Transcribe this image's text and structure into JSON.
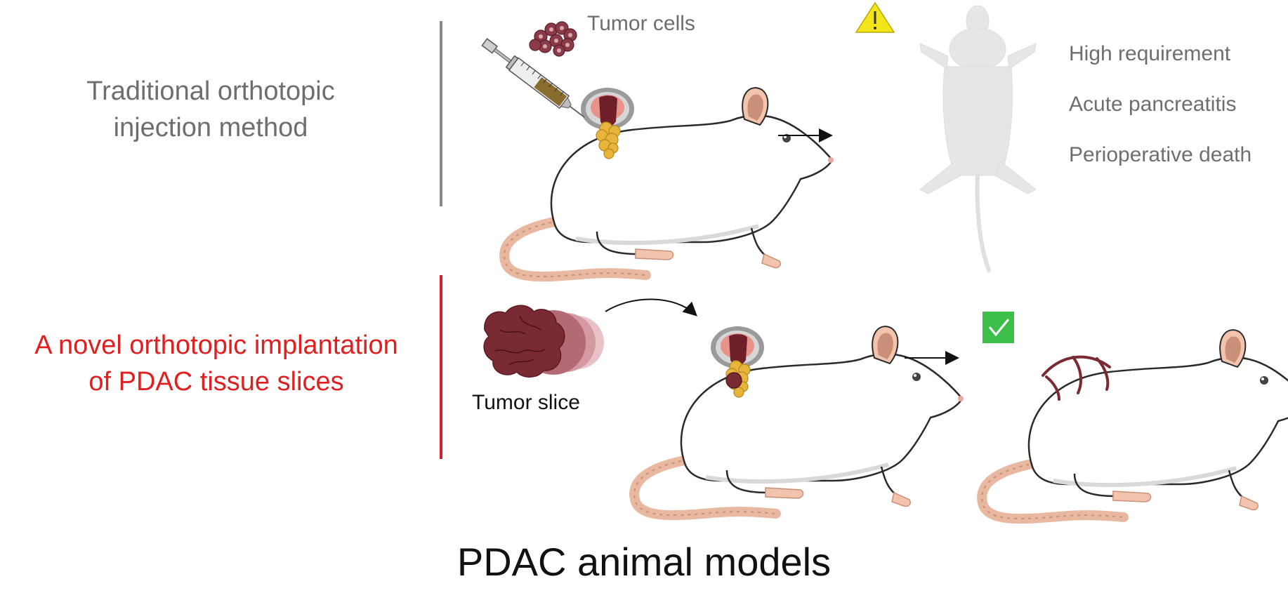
{
  "traditional": {
    "title_line1": "Traditional orthotopic",
    "title_line2": "injection method",
    "cells_label": "Tumor cells",
    "outcomes": [
      "High requirement",
      "Acute pancreatitis",
      "Perioperative death"
    ]
  },
  "novel": {
    "title_line1": "A novel orthotopic implantation",
    "title_line2": "of PDAC tissue slices",
    "slice_label": "Tumor slice"
  },
  "footer": {
    "caption": "PDAC animal models"
  },
  "colors": {
    "traditional_text": "#6e6e6e",
    "novel_text": "#e02020",
    "traditional_divider": "#888888",
    "novel_divider": "#d81e2a",
    "warning": "#f2e51c",
    "check": "#3cbf4a",
    "tumor": "#7a2a32"
  },
  "icons": [
    "syringe-icon",
    "tumor-cells-icon",
    "warning-icon",
    "check-icon",
    "mouse-icon",
    "tumor-slice-icon",
    "arrow-icon"
  ]
}
